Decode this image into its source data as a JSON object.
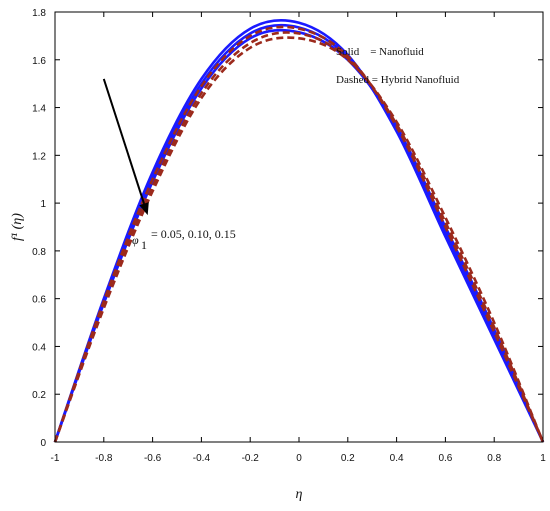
{
  "chart_data": {
    "type": "line",
    "xlabel": "η",
    "ylabel": "f¹ (η)",
    "xlim": [
      -1,
      1
    ],
    "ylim": [
      0,
      1.8
    ],
    "x_ticks": [
      -1,
      -0.8,
      -0.6,
      -0.4,
      -0.2,
      0,
      0.2,
      0.4,
      0.6,
      0.8,
      1
    ],
    "x_tick_labels": [
      "-1",
      "-0.8",
      "-0.6",
      "-0.4",
      "-0.2",
      "0",
      "0.2",
      "0.4",
      "0.6",
      "0.8",
      "1"
    ],
    "y_ticks": [
      0,
      0.2,
      0.4,
      0.6,
      0.8,
      1,
      1.2,
      1.4,
      1.6,
      1.8
    ],
    "y_tick_labels": [
      "0",
      "0.2",
      "0.4",
      "0.6",
      "0.8",
      "1",
      "1.2",
      "1.4",
      "1.6",
      "1.8"
    ],
    "grid": false,
    "legend_position": "top-right",
    "legend": [
      "Solid    = Nanofluid",
      "Dashed = Hybrid Nanofluid"
    ],
    "annotation": {
      "symbol": "φ",
      "subscript": "1",
      "text": "= 0.05, 0.10, 0.15",
      "arrow_from": [
        -0.8,
        1.52
      ],
      "arrow_to": [
        -0.62,
        0.95
      ]
    },
    "colors": {
      "solid": "#1a1aff",
      "dashed": "#9c2a1c"
    },
    "series": [
      {
        "style": "solid",
        "color": "#1a1aff",
        "values": [
          0,
          0.6,
          1.13,
          1.52,
          1.73,
          1.755,
          1.62,
          1.3,
          0.86,
          0.43,
          0
        ]
      },
      {
        "style": "solid",
        "color": "#1a1aff",
        "values": [
          0,
          0.59,
          1.11,
          1.5,
          1.71,
          1.735,
          1.61,
          1.31,
          0.88,
          0.45,
          0
        ]
      },
      {
        "style": "solid",
        "color": "#1a1aff",
        "values": [
          0,
          0.58,
          1.09,
          1.48,
          1.69,
          1.715,
          1.6,
          1.32,
          0.9,
          0.47,
          0
        ]
      },
      {
        "style": "dashed",
        "color": "#9c2a1c",
        "values": [
          0,
          0.59,
          1.1,
          1.49,
          1.7,
          1.73,
          1.615,
          1.32,
          0.9,
          0.46,
          0
        ]
      },
      {
        "style": "dashed",
        "color": "#9c2a1c",
        "values": [
          0,
          0.57,
          1.07,
          1.46,
          1.67,
          1.71,
          1.605,
          1.33,
          0.92,
          0.48,
          0
        ]
      },
      {
        "style": "dashed",
        "color": "#9c2a1c",
        "values": [
          0,
          0.56,
          1.05,
          1.44,
          1.65,
          1.69,
          1.6,
          1.34,
          0.94,
          0.5,
          0
        ]
      }
    ]
  }
}
